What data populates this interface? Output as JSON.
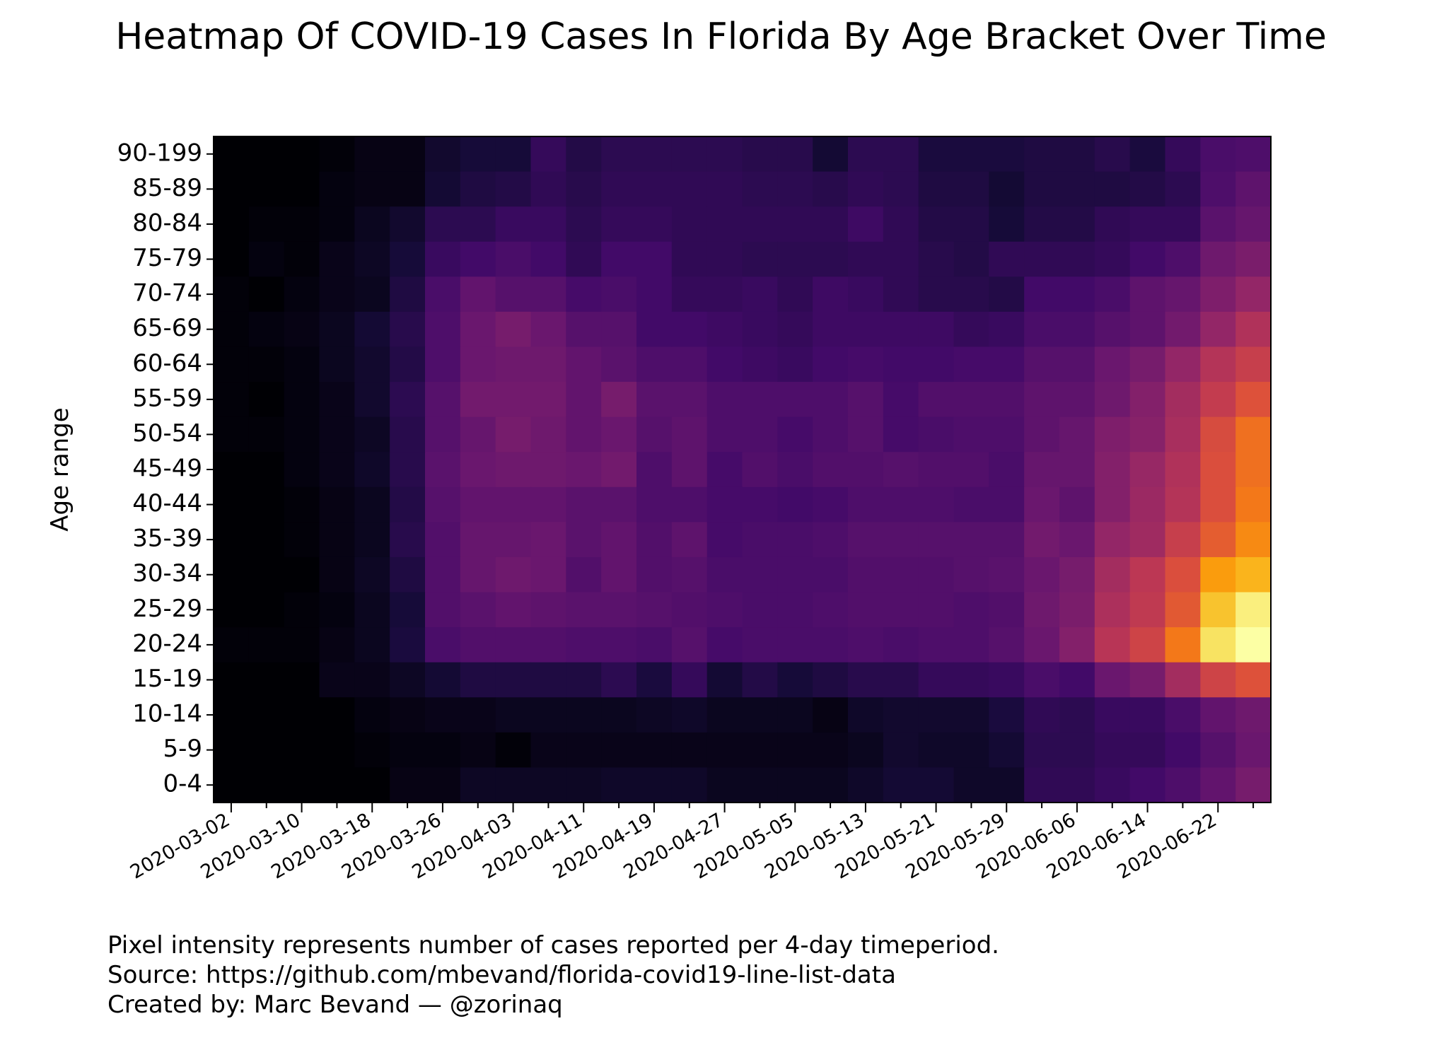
{
  "chart_data": {
    "type": "heatmap",
    "title": "Heatmap Of COVID-19 Cases In Florida By Age Bracket Over Time",
    "ylabel": "Age range",
    "xlabel": "",
    "colormap": "inferno",
    "grid": false,
    "legend": "none",
    "rows": [
      "90-199",
      "85-89",
      "80-84",
      "75-79",
      "70-74",
      "65-69",
      "60-64",
      "55-59",
      "50-54",
      "45-49",
      "40-44",
      "35-39",
      "30-34",
      "25-29",
      "20-24",
      "15-19",
      "10-14",
      "5-9",
      "0-4"
    ],
    "x_ticks": [
      "2020-03-02",
      "2020-03-10",
      "2020-03-18",
      "2020-03-26",
      "2020-04-03",
      "2020-04-11",
      "2020-04-19",
      "2020-04-27",
      "2020-05-05",
      "2020-05-13",
      "2020-05-21",
      "2020-05-29",
      "2020-06-06",
      "2020-06-14",
      "2020-06-22"
    ],
    "periods": [
      "2020-03-02",
      "2020-03-06",
      "2020-03-10",
      "2020-03-14",
      "2020-03-18",
      "2020-03-22",
      "2020-03-26",
      "2020-03-30",
      "2020-04-03",
      "2020-04-07",
      "2020-04-11",
      "2020-04-15",
      "2020-04-19",
      "2020-04-23",
      "2020-04-27",
      "2020-05-01",
      "2020-05-05",
      "2020-05-09",
      "2020-05-13",
      "2020-05-17",
      "2020-05-21",
      "2020-05-25",
      "2020-05-29",
      "2020-06-02",
      "2020-06-06",
      "2020-06-10",
      "2020-06-14",
      "2020-06-18",
      "2020-06-22",
      "2020-06-26"
    ],
    "values": [
      [
        0.0,
        0.0,
        0.0,
        0.01,
        0.03,
        0.03,
        0.08,
        0.1,
        0.1,
        0.17,
        0.13,
        0.15,
        0.15,
        0.15,
        0.15,
        0.14,
        0.14,
        0.09,
        0.15,
        0.15,
        0.11,
        0.11,
        0.11,
        0.12,
        0.12,
        0.14,
        0.11,
        0.17,
        0.22,
        0.23
      ],
      [
        0.0,
        0.0,
        0.0,
        0.02,
        0.03,
        0.03,
        0.09,
        0.12,
        0.13,
        0.16,
        0.14,
        0.16,
        0.16,
        0.16,
        0.16,
        0.15,
        0.15,
        0.14,
        0.16,
        0.15,
        0.12,
        0.12,
        0.09,
        0.12,
        0.12,
        0.12,
        0.13,
        0.15,
        0.23,
        0.27
      ],
      [
        0.0,
        0.01,
        0.01,
        0.02,
        0.05,
        0.08,
        0.15,
        0.15,
        0.18,
        0.18,
        0.15,
        0.17,
        0.17,
        0.16,
        0.16,
        0.16,
        0.16,
        0.16,
        0.19,
        0.16,
        0.13,
        0.13,
        0.1,
        0.13,
        0.13,
        0.16,
        0.17,
        0.17,
        0.26,
        0.29
      ],
      [
        0.0,
        0.02,
        0.01,
        0.04,
        0.06,
        0.1,
        0.18,
        0.2,
        0.22,
        0.2,
        0.16,
        0.2,
        0.2,
        0.16,
        0.16,
        0.15,
        0.15,
        0.15,
        0.16,
        0.16,
        0.14,
        0.13,
        0.16,
        0.16,
        0.16,
        0.17,
        0.2,
        0.23,
        0.31,
        0.34
      ],
      [
        0.01,
        0.0,
        0.02,
        0.04,
        0.05,
        0.12,
        0.22,
        0.28,
        0.25,
        0.25,
        0.21,
        0.22,
        0.2,
        0.17,
        0.17,
        0.18,
        0.16,
        0.19,
        0.18,
        0.16,
        0.14,
        0.14,
        0.13,
        0.2,
        0.2,
        0.22,
        0.27,
        0.29,
        0.35,
        0.4
      ],
      [
        0.01,
        0.02,
        0.03,
        0.05,
        0.09,
        0.14,
        0.23,
        0.3,
        0.33,
        0.3,
        0.25,
        0.25,
        0.2,
        0.2,
        0.19,
        0.18,
        0.17,
        0.19,
        0.19,
        0.19,
        0.19,
        0.17,
        0.18,
        0.22,
        0.22,
        0.25,
        0.27,
        0.32,
        0.4,
        0.47
      ],
      [
        0.01,
        0.01,
        0.02,
        0.05,
        0.08,
        0.13,
        0.23,
        0.3,
        0.31,
        0.31,
        0.28,
        0.26,
        0.23,
        0.23,
        0.2,
        0.19,
        0.18,
        0.2,
        0.21,
        0.2,
        0.2,
        0.21,
        0.21,
        0.25,
        0.25,
        0.3,
        0.33,
        0.4,
        0.48,
        0.53
      ],
      [
        0.01,
        0.0,
        0.02,
        0.04,
        0.08,
        0.15,
        0.25,
        0.32,
        0.32,
        0.32,
        0.28,
        0.33,
        0.26,
        0.26,
        0.23,
        0.23,
        0.23,
        0.23,
        0.25,
        0.21,
        0.24,
        0.24,
        0.24,
        0.27,
        0.27,
        0.31,
        0.36,
        0.44,
        0.52,
        0.6
      ],
      [
        0.01,
        0.01,
        0.02,
        0.04,
        0.06,
        0.14,
        0.25,
        0.29,
        0.33,
        0.31,
        0.28,
        0.3,
        0.25,
        0.27,
        0.23,
        0.23,
        0.21,
        0.23,
        0.25,
        0.21,
        0.22,
        0.23,
        0.23,
        0.27,
        0.29,
        0.35,
        0.37,
        0.45,
        0.58,
        0.68
      ],
      [
        0.0,
        0.0,
        0.02,
        0.04,
        0.07,
        0.14,
        0.26,
        0.3,
        0.31,
        0.31,
        0.3,
        0.32,
        0.23,
        0.27,
        0.21,
        0.24,
        0.22,
        0.24,
        0.24,
        0.25,
        0.24,
        0.24,
        0.22,
        0.29,
        0.29,
        0.36,
        0.41,
        0.47,
        0.59,
        0.68
      ],
      [
        0.0,
        0.0,
        0.01,
        0.03,
        0.05,
        0.13,
        0.25,
        0.28,
        0.28,
        0.28,
        0.26,
        0.26,
        0.23,
        0.23,
        0.21,
        0.21,
        0.2,
        0.21,
        0.23,
        0.23,
        0.23,
        0.22,
        0.22,
        0.3,
        0.27,
        0.36,
        0.42,
        0.48,
        0.59,
        0.7
      ],
      [
        0.0,
        0.0,
        0.01,
        0.03,
        0.05,
        0.14,
        0.24,
        0.29,
        0.29,
        0.3,
        0.26,
        0.28,
        0.24,
        0.27,
        0.21,
        0.22,
        0.22,
        0.23,
        0.25,
        0.25,
        0.25,
        0.25,
        0.25,
        0.32,
        0.3,
        0.4,
        0.43,
        0.53,
        0.63,
        0.74
      ],
      [
        0.0,
        0.0,
        0.0,
        0.03,
        0.06,
        0.12,
        0.24,
        0.29,
        0.31,
        0.3,
        0.24,
        0.28,
        0.24,
        0.25,
        0.22,
        0.22,
        0.22,
        0.22,
        0.24,
        0.24,
        0.24,
        0.25,
        0.26,
        0.3,
        0.33,
        0.44,
        0.5,
        0.59,
        0.78,
        0.83
      ],
      [
        0.0,
        0.0,
        0.01,
        0.02,
        0.05,
        0.1,
        0.24,
        0.26,
        0.28,
        0.27,
        0.26,
        0.26,
        0.25,
        0.24,
        0.23,
        0.22,
        0.22,
        0.23,
        0.24,
        0.24,
        0.24,
        0.23,
        0.24,
        0.31,
        0.34,
        0.46,
        0.51,
        0.62,
        0.86,
        0.96
      ],
      [
        0.01,
        0.01,
        0.01,
        0.03,
        0.05,
        0.11,
        0.22,
        0.24,
        0.24,
        0.24,
        0.23,
        0.23,
        0.22,
        0.25,
        0.21,
        0.22,
        0.22,
        0.22,
        0.23,
        0.22,
        0.23,
        0.23,
        0.25,
        0.3,
        0.36,
        0.49,
        0.55,
        0.7,
        0.93,
        1.0
      ],
      [
        0.0,
        0.0,
        0.0,
        0.04,
        0.04,
        0.06,
        0.09,
        0.12,
        0.12,
        0.12,
        0.12,
        0.15,
        0.11,
        0.17,
        0.09,
        0.13,
        0.1,
        0.12,
        0.14,
        0.14,
        0.17,
        0.17,
        0.18,
        0.22,
        0.2,
        0.3,
        0.33,
        0.44,
        0.55,
        0.6
      ],
      [
        0.0,
        0.0,
        0.0,
        0.0,
        0.02,
        0.03,
        0.04,
        0.04,
        0.05,
        0.05,
        0.05,
        0.05,
        0.06,
        0.07,
        0.05,
        0.05,
        0.05,
        0.03,
        0.07,
        0.08,
        0.08,
        0.08,
        0.11,
        0.16,
        0.15,
        0.18,
        0.18,
        0.22,
        0.28,
        0.31
      ],
      [
        0.0,
        0.0,
        0.0,
        0.0,
        0.01,
        0.02,
        0.02,
        0.03,
        0.01,
        0.04,
        0.04,
        0.04,
        0.04,
        0.04,
        0.04,
        0.04,
        0.04,
        0.04,
        0.05,
        0.08,
        0.07,
        0.07,
        0.09,
        0.15,
        0.15,
        0.17,
        0.17,
        0.2,
        0.25,
        0.3
      ],
      [
        0.0,
        0.0,
        0.0,
        0.0,
        0.0,
        0.03,
        0.03,
        0.06,
        0.06,
        0.06,
        0.06,
        0.07,
        0.07,
        0.07,
        0.05,
        0.05,
        0.05,
        0.05,
        0.07,
        0.09,
        0.09,
        0.07,
        0.07,
        0.16,
        0.16,
        0.18,
        0.2,
        0.23,
        0.28,
        0.33
      ]
    ]
  },
  "footnote": {
    "line1": "Pixel intensity represents number of cases reported per 4-day timeperiod.",
    "line2": "Source: https://github.com/mbevand/florida-covid19-line-list-data",
    "line3": "Created by: Marc Bevand — @zorinaq"
  }
}
